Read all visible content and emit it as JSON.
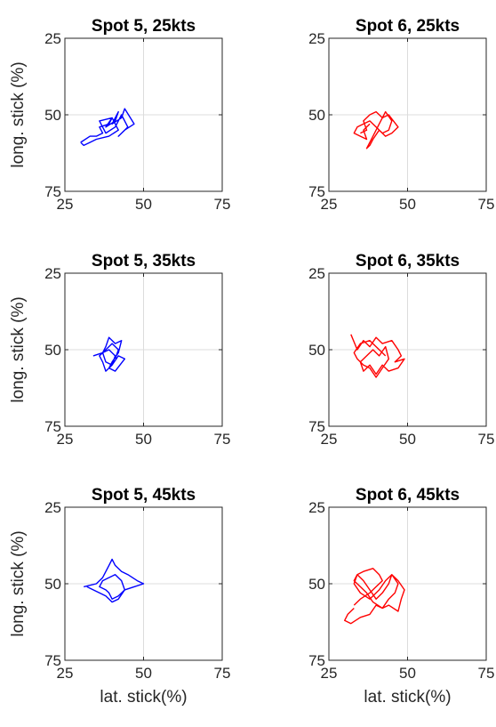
{
  "figure": {
    "ylabel": "long. stick (%)",
    "xlabel": "lat. stick(%)"
  },
  "chart_data": [
    {
      "type": "line",
      "title": "Spot 5, 25kts",
      "xlabel": "",
      "ylabel": "long. stick (%)",
      "xlim": [
        25,
        75
      ],
      "ylim": [
        25,
        75
      ],
      "y_reversed": true,
      "grid": true,
      "xticks": [
        "25",
        "50",
        "75"
      ],
      "yticks": [
        "25",
        "50",
        "75"
      ],
      "color": "#0000ff",
      "series": [
        {
          "x": [
            30,
            33,
            35,
            37,
            36,
            39,
            40,
            38,
            41,
            42,
            40,
            43,
            44,
            47,
            44,
            42,
            45,
            43,
            41,
            38,
            36,
            40,
            42,
            39,
            35,
            33,
            31,
            30
          ],
          "y": [
            59,
            57,
            57,
            56,
            54,
            53,
            51,
            54,
            52,
            49,
            53,
            51,
            48,
            53,
            55,
            57,
            54,
            50,
            54,
            56,
            52,
            51,
            55,
            57,
            58,
            59,
            60,
            59
          ]
        }
      ]
    },
    {
      "type": "line",
      "title": "Spot 6, 25kts",
      "xlabel": "",
      "ylabel": "",
      "xlim": [
        25,
        75
      ],
      "ylim": [
        25,
        75
      ],
      "y_reversed": true,
      "grid": true,
      "xticks": [
        "25",
        "50",
        "75"
      ],
      "yticks": [
        "25",
        "50",
        "75"
      ],
      "color": "#ff0000",
      "series": [
        {
          "x": [
            35,
            37,
            36,
            38,
            40,
            42,
            44,
            47,
            45,
            43,
            41,
            39,
            38,
            37,
            39,
            41,
            43,
            45,
            44,
            42,
            40,
            38,
            36,
            34,
            33,
            35,
            37,
            36,
            38
          ],
          "y": [
            56,
            55,
            52,
            50,
            49,
            51,
            50,
            54,
            56,
            57,
            55,
            58,
            60,
            61,
            57,
            53,
            49,
            52,
            55,
            56,
            54,
            52,
            53,
            54,
            56,
            57,
            58,
            55,
            53
          ]
        }
      ]
    },
    {
      "type": "line",
      "title": "Spot 5, 35kts",
      "xlabel": "",
      "ylabel": "long. stick (%)",
      "xlim": [
        25,
        75
      ],
      "ylim": [
        25,
        75
      ],
      "y_reversed": true,
      "grid": true,
      "xticks": [
        "25",
        "50",
        "75"
      ],
      "yticks": [
        "25",
        "50",
        "75"
      ],
      "color": "#0000ff",
      "series": [
        {
          "x": [
            34,
            37,
            38,
            39,
            41,
            43,
            42,
            40,
            39,
            41,
            44,
            42,
            40,
            38,
            37,
            39,
            41,
            40,
            38,
            37,
            36,
            38,
            40,
            42,
            41
          ],
          "y": [
            52,
            51,
            49,
            46,
            48,
            47,
            51,
            54,
            56,
            57,
            53,
            52,
            55,
            54,
            51,
            50,
            52,
            55,
            57,
            54,
            52,
            50,
            48,
            50,
            53
          ]
        }
      ]
    },
    {
      "type": "line",
      "title": "Spot 6, 35kts",
      "xlabel": "",
      "ylabel": "",
      "xlim": [
        25,
        75
      ],
      "ylim": [
        25,
        75
      ],
      "y_reversed": true,
      "grid": true,
      "xticks": [
        "25",
        "50",
        "75"
      ],
      "yticks": [
        "25",
        "50",
        "75"
      ],
      "color": "#ff0000",
      "series": [
        {
          "x": [
            32,
            34,
            36,
            38,
            40,
            42,
            45,
            47,
            48,
            46,
            49,
            47,
            44,
            42,
            40,
            38,
            36,
            35,
            37,
            39,
            41,
            43,
            44,
            42,
            40,
            38,
            36,
            34,
            33,
            35,
            38,
            41,
            43
          ],
          "y": [
            45,
            50,
            47,
            49,
            46,
            48,
            47,
            50,
            52,
            54,
            53,
            56,
            57,
            55,
            58,
            55,
            57,
            54,
            52,
            50,
            52,
            49,
            53,
            56,
            59,
            56,
            55,
            53,
            51,
            48,
            47,
            50,
            52
          ]
        }
      ]
    },
    {
      "type": "line",
      "title": "Spot 5, 45kts",
      "xlabel": "lat. stick(%)",
      "ylabel": "long. stick (%)",
      "xlim": [
        25,
        75
      ],
      "ylim": [
        25,
        75
      ],
      "y_reversed": true,
      "grid": true,
      "xticks": [
        "25",
        "50",
        "75"
      ],
      "yticks": [
        "25",
        "50",
        "75"
      ],
      "color": "#0000ff",
      "series": [
        {
          "x": [
            31,
            35,
            37,
            39,
            40,
            41,
            43,
            45,
            48,
            50,
            47,
            44,
            42,
            40,
            39,
            38,
            36,
            37,
            39,
            41,
            43,
            44,
            42,
            40,
            38,
            36,
            34,
            32
          ],
          "y": [
            51,
            50,
            48,
            44,
            42,
            44,
            46,
            47,
            49,
            50,
            51,
            52,
            54,
            55,
            53,
            52,
            51,
            49,
            48,
            47,
            49,
            52,
            55,
            56,
            54,
            53,
            52,
            51
          ]
        }
      ]
    },
    {
      "type": "line",
      "title": "Spot 6, 45kts",
      "xlabel": "lat. stick(%)",
      "ylabel": "",
      "xlim": [
        25,
        75
      ],
      "ylim": [
        25,
        75
      ],
      "y_reversed": true,
      "grid": true,
      "xticks": [
        "25",
        "50",
        "75"
      ],
      "yticks": [
        "25",
        "50",
        "75"
      ],
      "color": "#ff0000",
      "series": [
        {
          "x": [
            33,
            31,
            30,
            32,
            35,
            38,
            40,
            42,
            44,
            47,
            48,
            49,
            47,
            45,
            44,
            42,
            40,
            38,
            36,
            34,
            33,
            35,
            38,
            41,
            43,
            45,
            47,
            46,
            44,
            42,
            39,
            37,
            35,
            33,
            34,
            36,
            39,
            41,
            42,
            40,
            38,
            35,
            33
          ],
          "y": [
            58,
            60,
            62,
            63,
            61,
            60,
            57,
            58,
            57,
            59,
            55,
            52,
            49,
            47,
            50,
            53,
            55,
            52,
            49,
            47,
            50,
            53,
            55,
            52,
            49,
            47,
            50,
            53,
            55,
            58,
            56,
            53,
            51,
            49,
            47,
            46,
            45,
            47,
            49,
            51,
            53,
            55,
            57
          ]
        }
      ]
    }
  ]
}
